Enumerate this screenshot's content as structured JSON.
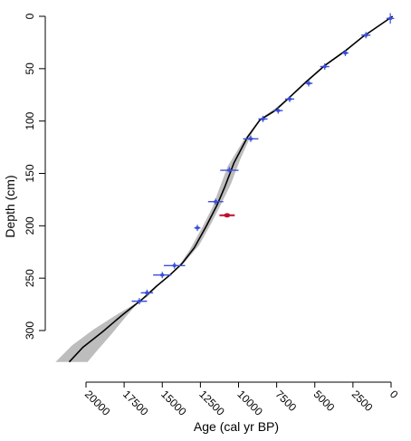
{
  "chart_data": {
    "type": "line",
    "title": "",
    "xlabel": "Age (cal yr BP)",
    "ylabel": "Depth (cm)",
    "x_axis_reversed": true,
    "y_axis_reversed": true,
    "xlim": [
      22000,
      -300
    ],
    "ylim": [
      -5,
      335
    ],
    "x_ticks": [
      20000,
      17500,
      15000,
      12500,
      10000,
      7500,
      5000,
      2500,
      0
    ],
    "x_tick_labels": [
      "20000",
      "17500",
      "15000",
      "12500",
      "10000",
      "7500",
      "5000",
      "2500",
      "0"
    ],
    "y_ticks": [
      0,
      50,
      100,
      150,
      200,
      250,
      300
    ],
    "y_tick_labels": [
      "0",
      "50",
      "100",
      "150",
      "200",
      "250",
      "300"
    ],
    "colors": {
      "model_line": "#000000",
      "confidence_band": "#bdbdbd",
      "dates": "#3b4fd8",
      "outlier": "#c0112b"
    },
    "series": [
      {
        "kind": "age-depth model",
        "points": [
          [
            -100,
            0
          ],
          [
            900,
            10
          ],
          [
            1900,
            20
          ],
          [
            3000,
            33
          ],
          [
            4350,
            47
          ],
          [
            5600,
            63
          ],
          [
            6700,
            78
          ],
          [
            7600,
            90
          ],
          [
            8600,
            99
          ],
          [
            9400,
            115
          ],
          [
            10300,
            140
          ],
          [
            10900,
            163
          ],
          [
            11400,
            180
          ],
          [
            12100,
            200
          ],
          [
            12900,
            221
          ],
          [
            13700,
            236
          ],
          [
            14500,
            247
          ],
          [
            15400,
            258
          ],
          [
            16300,
            270
          ],
          [
            17600,
            285
          ],
          [
            18900,
            301
          ],
          [
            20200,
            316
          ],
          [
            21100,
            330
          ]
        ]
      },
      {
        "kind": "confidence band",
        "upper": [
          [
            -100,
            0
          ],
          [
            900,
            10
          ],
          [
            1900,
            20
          ],
          [
            3000,
            32
          ],
          [
            4350,
            46
          ],
          [
            5600,
            62
          ],
          [
            6700,
            77
          ],
          [
            7600,
            88
          ],
          [
            8500,
            97
          ],
          [
            9100,
            111
          ],
          [
            9900,
            137
          ],
          [
            10500,
            160
          ],
          [
            11100,
            178
          ],
          [
            11800,
            198
          ],
          [
            12600,
            219
          ],
          [
            13500,
            234
          ],
          [
            14300,
            245
          ],
          [
            15200,
            256
          ],
          [
            16000,
            268
          ],
          [
            16500,
            272
          ],
          [
            17400,
            287
          ],
          [
            18300,
            303
          ],
          [
            19200,
            318
          ],
          [
            19900,
            330
          ]
        ],
        "lower": [
          [
            -100,
            0
          ],
          [
            900,
            10
          ],
          [
            1900,
            20
          ],
          [
            3000,
            34
          ],
          [
            4350,
            48
          ],
          [
            5600,
            64
          ],
          [
            6700,
            79
          ],
          [
            7700,
            92
          ],
          [
            8700,
            101
          ],
          [
            9700,
            119
          ],
          [
            10700,
            143
          ],
          [
            11300,
            166
          ],
          [
            11700,
            182
          ],
          [
            12400,
            202
          ],
          [
            13200,
            223
          ],
          [
            13900,
            238
          ],
          [
            14700,
            249
          ],
          [
            15600,
            260
          ],
          [
            16500,
            272
          ],
          [
            18000,
            285
          ],
          [
            19500,
            299
          ],
          [
            20900,
            314
          ],
          [
            22000,
            330
          ]
        ]
      },
      {
        "kind": "dated samples",
        "points": [
          {
            "age": 50,
            "depth": 2,
            "age_err": 250,
            "depth_err": 5
          },
          {
            "age": 1650,
            "depth": 18,
            "age_err": 300,
            "depth_err": 3
          },
          {
            "age": 3000,
            "depth": 35,
            "age_err": 200,
            "depth_err": 3
          },
          {
            "age": 4350,
            "depth": 48,
            "age_err": 300,
            "depth_err": 3
          },
          {
            "age": 5400,
            "depth": 64,
            "age_err": 250,
            "depth_err": 3
          },
          {
            "age": 6650,
            "depth": 79,
            "age_err": 300,
            "depth_err": 3
          },
          {
            "age": 7400,
            "depth": 90,
            "age_err": 300,
            "depth_err": 3
          },
          {
            "age": 8400,
            "depth": 98,
            "age_err": 300,
            "depth_err": 3
          },
          {
            "age": 9200,
            "depth": 117,
            "age_err": 500,
            "depth_err": 3
          },
          {
            "age": 10600,
            "depth": 147,
            "age_err": 600,
            "depth_err": 3
          },
          {
            "age": 11500,
            "depth": 177,
            "age_err": 500,
            "depth_err": 3
          },
          {
            "age": 12700,
            "depth": 202,
            "age_err": 200,
            "depth_err": 3
          },
          {
            "age": 14200,
            "depth": 238,
            "age_err": 700,
            "depth_err": 3
          },
          {
            "age": 15000,
            "depth": 247,
            "age_err": 600,
            "depth_err": 3
          },
          {
            "age": 16000,
            "depth": 264,
            "age_err": 400,
            "depth_err": 3
          },
          {
            "age": 16500,
            "depth": 272,
            "age_err": 500,
            "depth_err": 3
          }
        ]
      },
      {
        "kind": "outlier",
        "points": [
          {
            "age": 10750,
            "depth": 190,
            "age_err": 500,
            "depth_err": 2
          }
        ]
      }
    ]
  }
}
